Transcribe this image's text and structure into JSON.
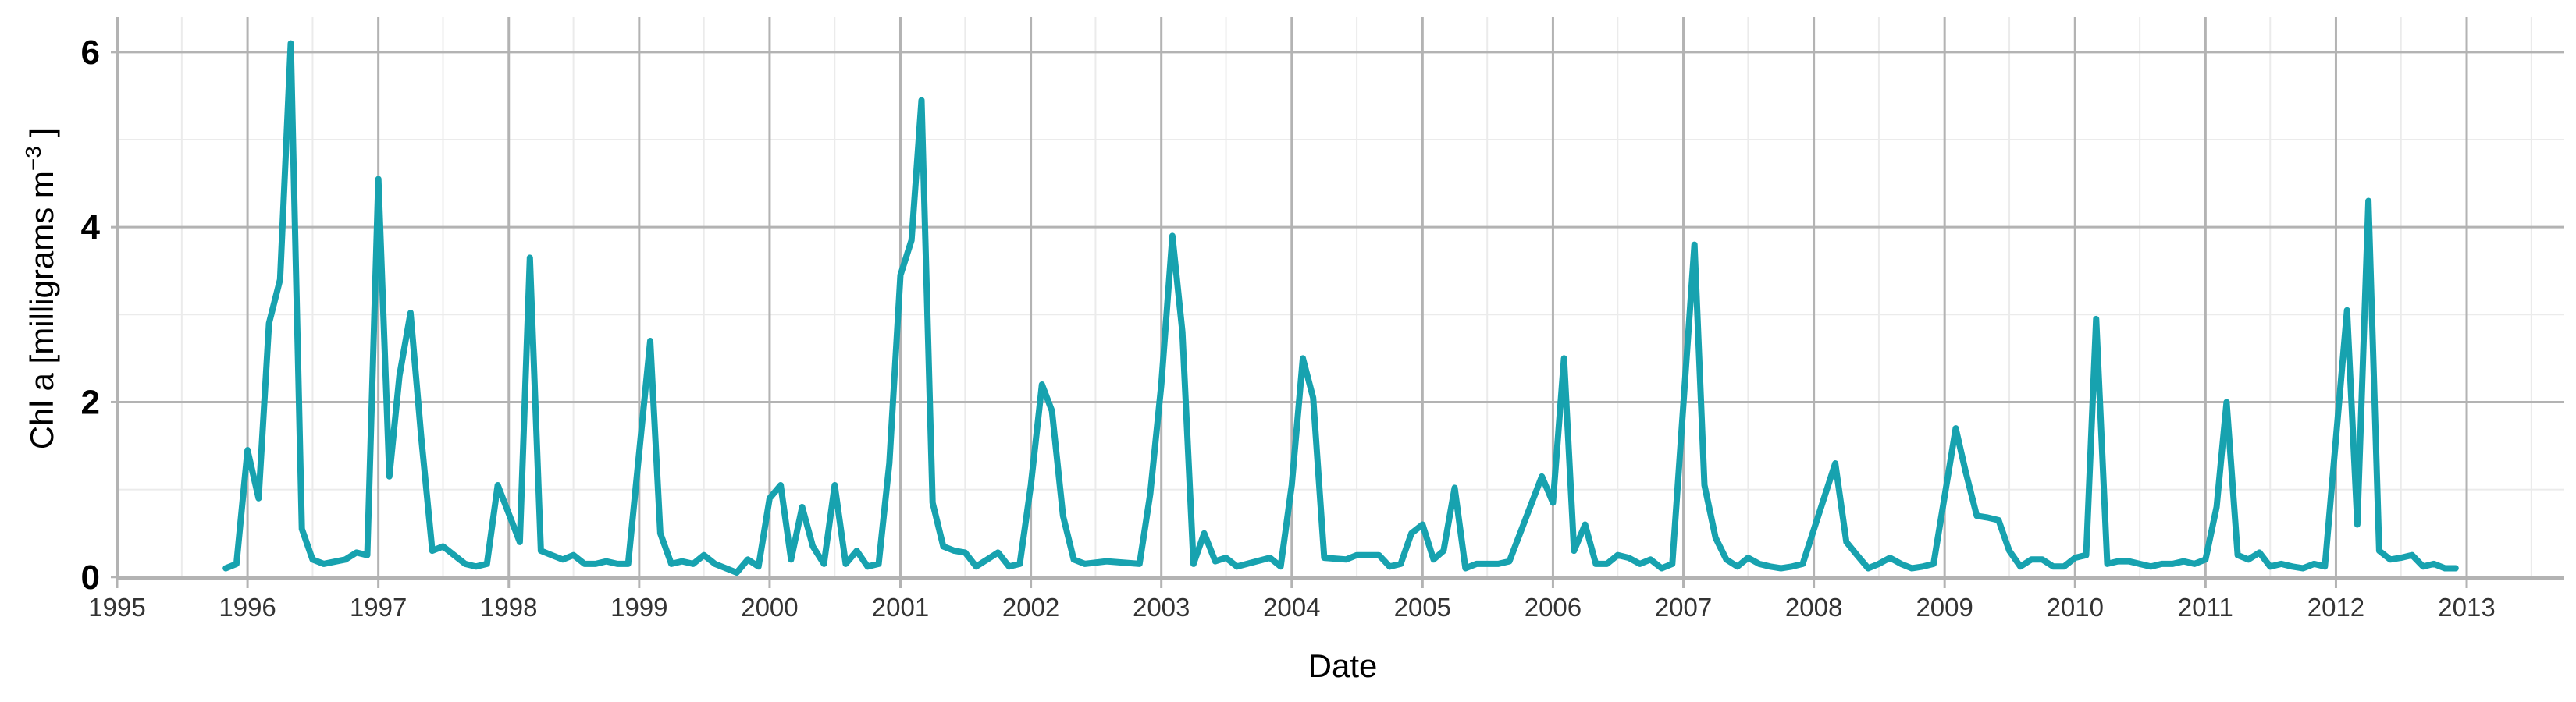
{
  "chart_data": {
    "type": "line",
    "title": "",
    "xlabel": "Date",
    "ylabel_main": "Chl a [milligrams  m",
    "ylabel_sup": "−3",
    "ylabel_end": " ]",
    "ylim": [
      -0.02,
      6.4
    ],
    "xlim": [
      "1995-01-01",
      "2013-10-01"
    ],
    "y_ticks": [
      0,
      2,
      4,
      6
    ],
    "x_ticks": [
      "1995",
      "1996",
      "1997",
      "1998",
      "1999",
      "2000",
      "2001",
      "2002",
      "2003",
      "2004",
      "2005",
      "2006",
      "2007",
      "2008",
      "2009",
      "2010",
      "2011",
      "2012",
      "2013"
    ],
    "grid": true,
    "legend": "none",
    "line_color": "#17A2AF",
    "grid_major_color": "#B3B3B3",
    "grid_minor_color": "#EBEBEB",
    "series": [
      {
        "x": [
          "1995-11-01",
          "1995-12-01",
          "1996-01-01",
          "1996-02-01",
          "1996-03-01",
          "1996-04-01",
          "1996-05-01",
          "1996-06-01",
          "1996-07-01",
          "1996-08-01",
          "1996-10-01",
          "1996-11-01",
          "1996-12-01",
          "1997-01-01",
          "1997-02-01",
          "1997-03-01",
          "1997-04-01",
          "1997-05-01",
          "1997-06-01",
          "1997-07-01",
          "1997-08-01",
          "1997-09-01",
          "1997-10-01",
          "1997-11-01",
          "1997-12-01",
          "1998-02-01",
          "1998-03-01",
          "1998-04-01",
          "1998-05-01",
          "1998-06-01",
          "1998-07-01",
          "1998-08-01",
          "1998-09-01",
          "1998-10-01",
          "1998-11-01",
          "1998-12-01",
          "1999-02-01",
          "1999-03-01",
          "1999-04-01",
          "1999-05-01",
          "1999-06-01",
          "1999-07-01",
          "1999-08-01",
          "1999-10-01",
          "1999-11-01",
          "1999-12-01",
          "2000-01-01",
          "2000-02-01",
          "2000-03-01",
          "2000-04-01",
          "2000-05-01",
          "2000-06-01",
          "2000-07-01",
          "2000-08-01",
          "2000-09-01",
          "2000-10-01",
          "2000-11-01",
          "2000-12-01",
          "2001-01-01",
          "2001-02-01",
          "2001-03-01",
          "2001-04-01",
          "2001-05-01",
          "2001-06-01",
          "2001-07-01",
          "2001-08-01",
          "2001-09-01",
          "2001-10-01",
          "2001-11-01",
          "2001-12-01",
          "2002-01-01",
          "2002-02-01",
          "2002-03-01",
          "2002-04-01",
          "2002-05-01",
          "2002-06-01",
          "2002-08-01",
          "2002-11-01",
          "2002-12-01",
          "2003-01-01",
          "2003-02-01",
          "2003-03-01",
          "2003-04-01",
          "2003-05-01",
          "2003-06-01",
          "2003-07-01",
          "2003-08-01",
          "2003-11-01",
          "2003-12-01",
          "2004-01-01",
          "2004-02-01",
          "2004-03-01",
          "2004-04-01",
          "2004-06-01",
          "2004-07-01",
          "2004-08-01",
          "2004-09-01",
          "2004-10-01",
          "2004-11-01",
          "2004-12-01",
          "2005-01-01",
          "2005-02-01",
          "2005-03-01",
          "2005-04-01",
          "2005-05-01",
          "2005-06-01",
          "2005-07-01",
          "2005-08-01",
          "2005-09-01",
          "2005-10-01",
          "2005-12-01",
          "2006-01-01",
          "2006-02-01",
          "2006-03-01",
          "2006-04-01",
          "2006-05-01",
          "2006-06-01",
          "2006-07-01",
          "2006-08-01",
          "2006-09-01",
          "2006-10-01",
          "2006-11-01",
          "2006-12-01",
          "2007-02-01",
          "2007-03-01",
          "2007-04-01",
          "2007-05-01",
          "2007-06-01",
          "2007-07-01",
          "2007-08-01",
          "2007-09-01",
          "2007-10-01",
          "2007-11-01",
          "2007-12-01",
          "2008-03-01",
          "2008-04-01",
          "2008-05-01",
          "2008-06-01",
          "2008-07-01",
          "2008-08-01",
          "2008-09-01",
          "2008-10-01",
          "2008-11-01",
          "2008-12-01",
          "2009-02-01",
          "2009-03-01",
          "2009-04-01",
          "2009-05-01",
          "2009-06-01",
          "2009-07-01",
          "2009-08-01",
          "2009-09-01",
          "2009-10-01",
          "2009-11-01",
          "2009-12-01",
          "2010-01-01",
          "2010-02-01",
          "2010-03-01",
          "2010-04-01",
          "2010-05-01",
          "2010-06-01",
          "2010-08-01",
          "2010-09-01",
          "2010-10-01",
          "2010-11-01",
          "2010-12-01",
          "2011-01-01",
          "2011-02-01",
          "2011-03-01",
          "2011-04-01",
          "2011-05-01",
          "2011-06-01",
          "2011-07-01",
          "2011-08-01",
          "2011-09-01",
          "2011-10-01",
          "2011-11-01",
          "2011-12-01",
          "2012-02-01",
          "2012-03-01",
          "2012-04-01",
          "2012-05-01",
          "2012-06-01",
          "2012-07-01",
          "2012-08-01",
          "2012-09-01",
          "2012-10-01",
          "2012-11-01",
          "2012-12-01"
        ],
        "y": [
          0.1,
          0.15,
          1.45,
          0.9,
          2.9,
          3.4,
          6.1,
          0.55,
          0.2,
          0.15,
          0.2,
          0.28,
          0.25,
          4.55,
          1.15,
          2.3,
          3.02,
          1.6,
          0.3,
          0.35,
          0.25,
          0.15,
          0.12,
          0.15,
          1.05,
          0.4,
          3.65,
          0.3,
          0.25,
          0.2,
          0.25,
          0.15,
          0.15,
          0.18,
          0.15,
          0.15,
          2.7,
          0.5,
          0.15,
          0.18,
          0.15,
          0.25,
          0.15,
          0.05,
          0.2,
          0.12,
          0.9,
          1.05,
          0.2,
          0.8,
          0.35,
          0.15,
          1.05,
          0.15,
          0.3,
          0.12,
          0.15,
          1.3,
          3.45,
          3.85,
          5.45,
          0.85,
          0.35,
          0.3,
          0.28,
          0.12,
          0.2,
          0.28,
          0.12,
          0.15,
          1.05,
          2.2,
          1.9,
          0.7,
          0.2,
          0.15,
          0.18,
          0.15,
          0.95,
          2.2,
          3.9,
          2.8,
          0.15,
          0.5,
          0.18,
          0.22,
          0.12,
          0.22,
          0.12,
          1.05,
          2.5,
          2.05,
          0.22,
          0.2,
          0.25,
          0.25,
          0.25,
          0.12,
          0.15,
          0.5,
          0.6,
          0.2,
          0.3,
          1.02,
          0.1,
          0.15,
          0.15,
          0.15,
          0.18,
          0.5,
          1.15,
          0.85,
          2.5,
          0.3,
          0.6,
          0.15,
          0.15,
          0.25,
          0.22,
          0.15,
          0.2,
          0.1,
          0.15,
          3.8,
          1.05,
          0.45,
          0.2,
          0.12,
          0.22,
          0.15,
          0.12,
          0.1,
          0.12,
          0.15,
          1.3,
          0.4,
          0.25,
          0.1,
          0.15,
          0.22,
          0.15,
          0.1,
          0.12,
          0.15,
          1.7,
          1.2,
          0.7,
          0.68,
          0.65,
          0.3,
          0.12,
          0.2,
          0.2,
          0.12,
          0.12,
          0.22,
          0.25,
          2.95,
          0.15,
          0.18,
          0.18,
          0.12,
          0.15,
          0.15,
          0.18,
          0.15,
          0.2,
          0.8,
          2.0,
          0.25,
          0.2,
          0.28,
          0.12,
          0.15,
          0.12,
          0.1,
          0.15,
          0.12,
          3.05,
          0.6,
          4.3,
          0.3,
          0.2,
          0.22,
          0.25,
          0.12,
          0.15,
          0.1,
          0.1
        ]
      }
    ]
  }
}
